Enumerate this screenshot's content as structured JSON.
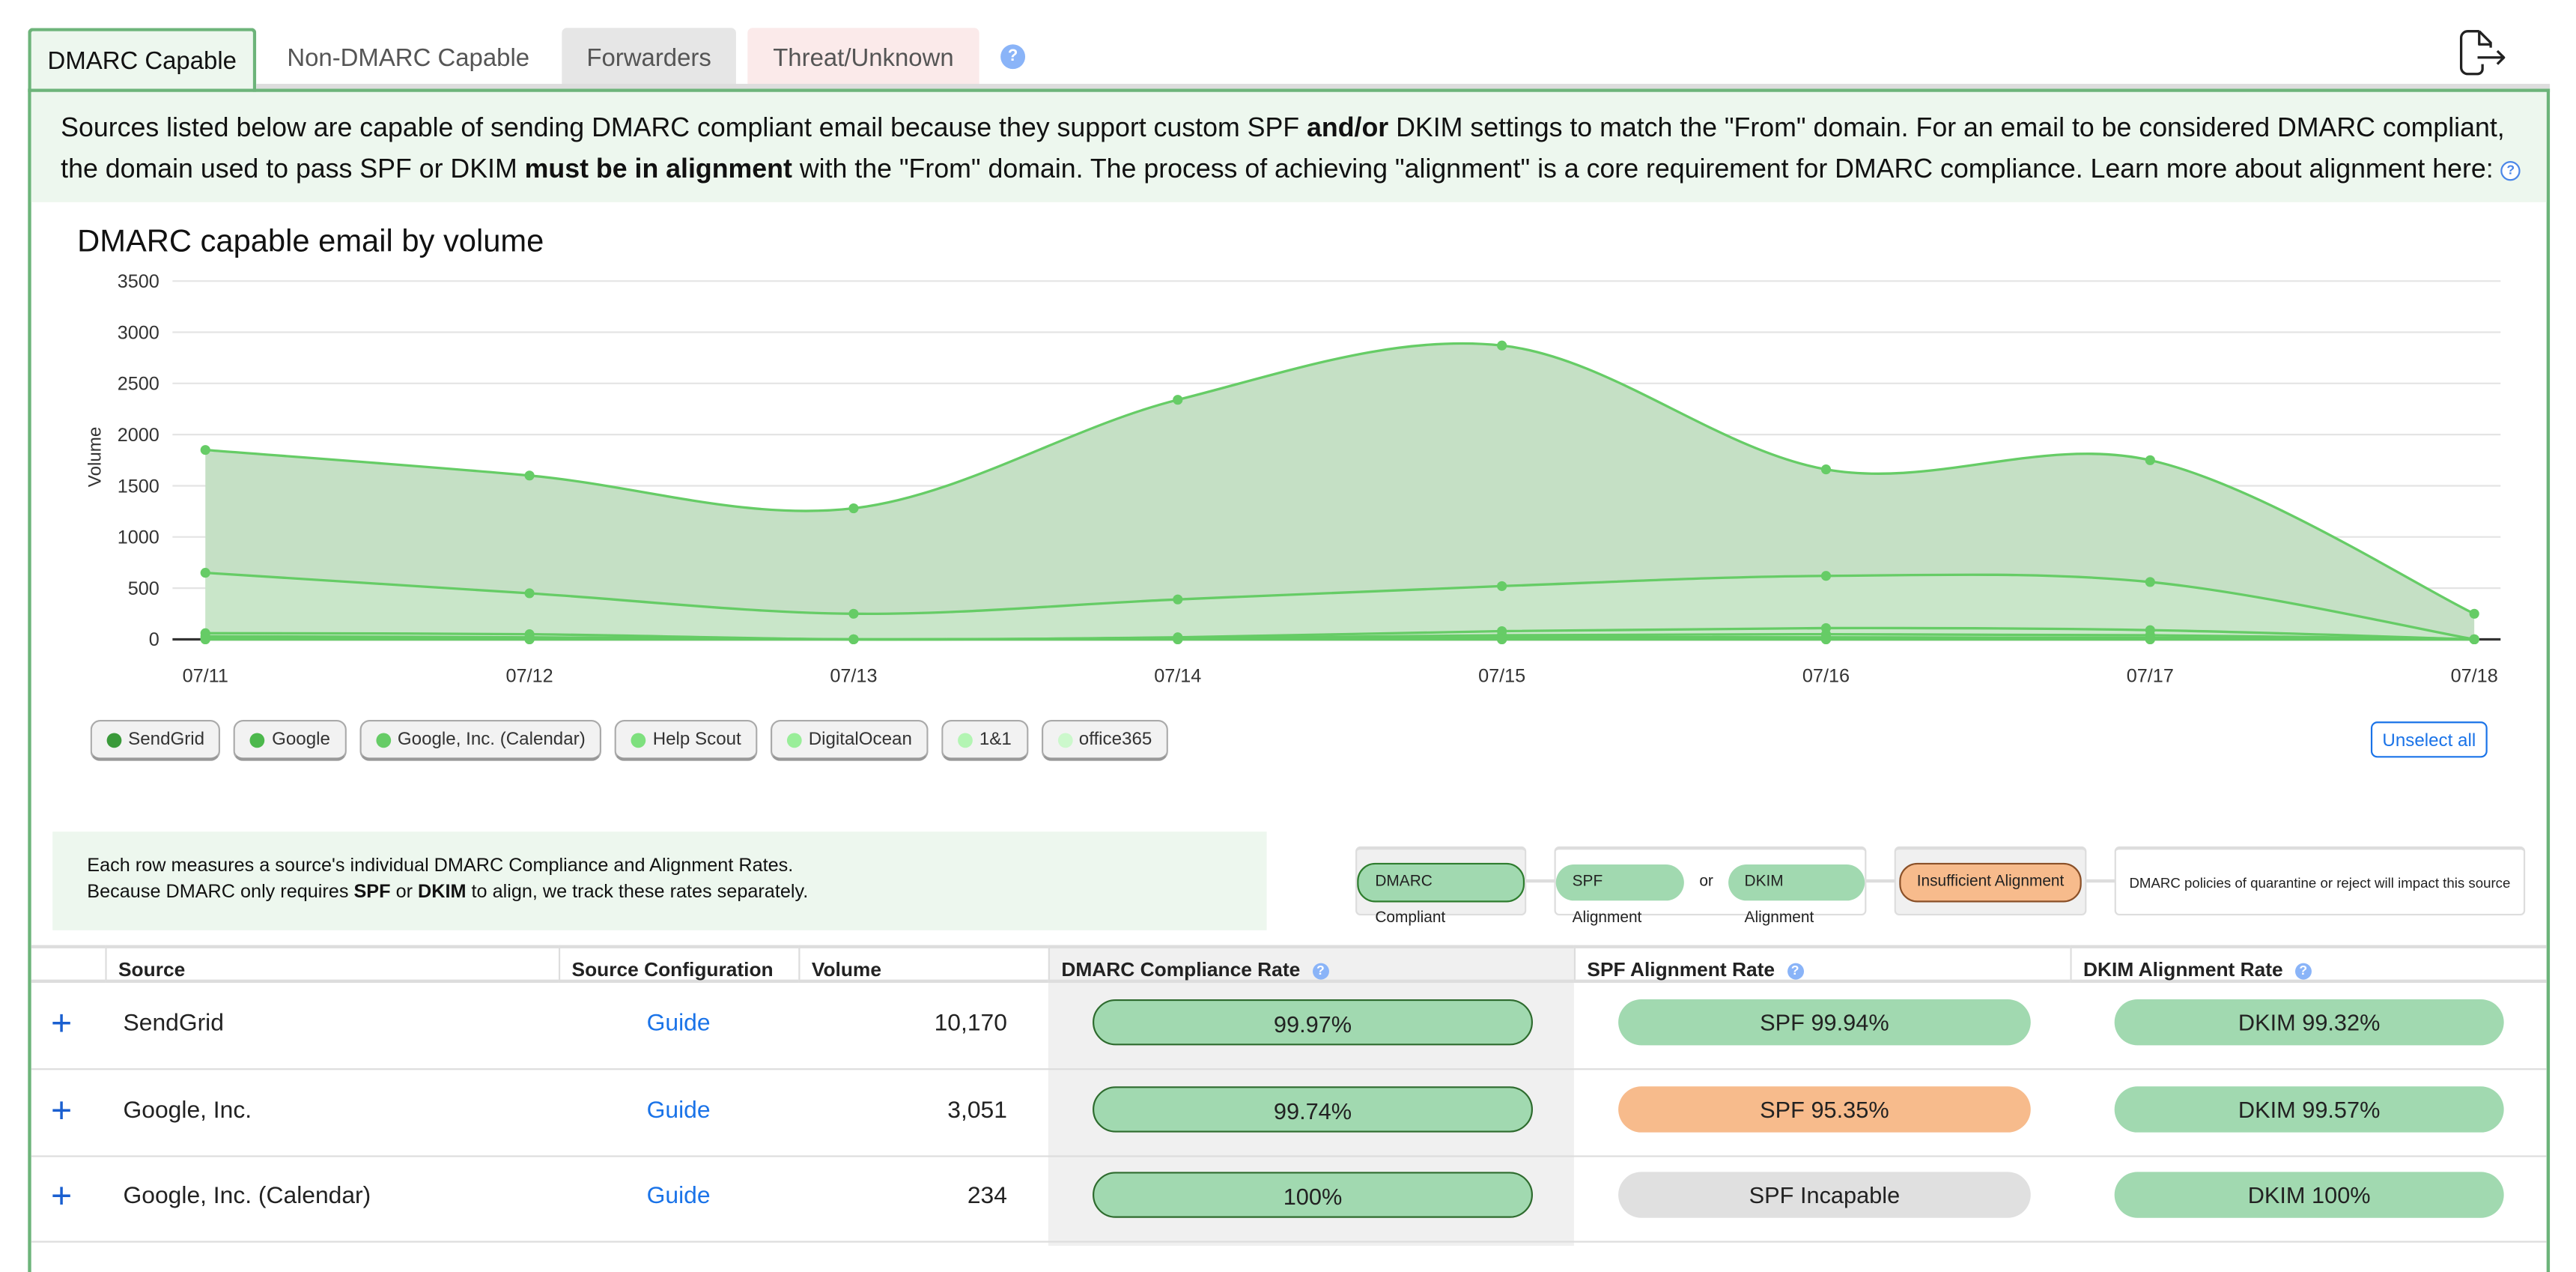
{
  "tabs": [
    {
      "label": "DMARC Capable",
      "active": true
    },
    {
      "label": "Non-DMARC Capable"
    },
    {
      "label": "Forwarders"
    },
    {
      "label": "Threat/Unknown"
    }
  ],
  "help_icon": "?",
  "export_icon": "file-export-icon",
  "banner": {
    "s1": "Sources listed below are capable of sending DMARC compliant email because they support custom SPF ",
    "b1": "and/or",
    "s2": " DKIM settings to match the \"From\" domain. For an email to be considered DMARC compliant, the domain used to pass SPF or DKIM ",
    "b2": "must be in alignment",
    "s3": " with the \"From\" domain. The process of achieving \"alignment\" is a core requirement for DMARC compliance. Learn more about alignment here:"
  },
  "chart_data": {
    "type": "area",
    "stacked": true,
    "title": "DMARC capable email by volume",
    "ylabel": "Volume",
    "xlabel": "",
    "ylim": [
      0,
      3500
    ],
    "yticks": [
      "3500",
      "3000",
      "2500",
      "2000",
      "1500",
      "1000",
      "500",
      "0"
    ],
    "categories": [
      "07/11",
      "07/12",
      "07/13",
      "07/14",
      "07/15",
      "07/16",
      "07/17",
      "07/18"
    ],
    "grid": true,
    "legend": "bottom-left",
    "series": [
      {
        "name": "SendGrid",
        "color": "#3a9a3a",
        "values": [
          1200,
          1150,
          1030,
          1950,
          2350,
          1040,
          1190,
          250
        ]
      },
      {
        "name": "Google",
        "color": "#4cb84c",
        "values": [
          590,
          400,
          250,
          370,
          440,
          510,
          470,
          0
        ]
      },
      {
        "name": "Google, Inc. (Calendar)",
        "color": "#66cc66",
        "values": [
          30,
          30,
          0,
          10,
          40,
          60,
          50,
          0
        ]
      },
      {
        "name": "Help Scout",
        "color": "#7ee07e",
        "values": [
          20,
          10,
          0,
          5,
          20,
          30,
          25,
          0
        ]
      },
      {
        "name": "DigitalOcean",
        "color": "#99ee99",
        "values": [
          10,
          10,
          0,
          5,
          20,
          20,
          15,
          0
        ]
      },
      {
        "name": "1&1",
        "color": "#b3f5b3",
        "values": [
          0,
          0,
          0,
          0,
          0,
          0,
          0,
          0
        ]
      },
      {
        "name": "office365",
        "color": "#ccf8cc",
        "values": [
          0,
          0,
          0,
          0,
          0,
          0,
          0,
          0
        ]
      }
    ]
  },
  "unselect_all": "Unselect all",
  "info": {
    "line1": "Each row measures a source's individual DMARC Compliance and Alignment Rates.",
    "l2a": "Because DMARC only requires ",
    "l2b": "SPF",
    "l2c": " or ",
    "l2d": "DKIM",
    "l2e": " to align, we track these rates separately."
  },
  "legend_key": {
    "compliant": "DMARC Compliant",
    "spf": "SPF Alignment",
    "or": "or",
    "dkim": "DKIM Alignment",
    "insufficient": "Insufficient Alignment",
    "impact": "DMARC policies of quarantine or reject will impact this source"
  },
  "table": {
    "headers": [
      "Source",
      "Source Configuration",
      "Volume",
      "DMARC Compliance Rate",
      "SPF Alignment Rate",
      "DKIM Alignment Rate"
    ],
    "rows": [
      {
        "source": "SendGrid",
        "config": "Guide",
        "volume": "10,170",
        "dmarc": "99.97%",
        "spf": "SPF 99.94%",
        "spf_status": "green",
        "dkim": "DKIM 99.32%"
      },
      {
        "source": "Google, Inc.",
        "config": "Guide",
        "volume": "3,051",
        "dmarc": "99.74%",
        "spf": "SPF 95.35%",
        "spf_status": "orange",
        "dkim": "DKIM 99.57%"
      },
      {
        "source": "Google, Inc. (Calendar)",
        "config": "Guide",
        "volume": "234",
        "dmarc": "100%",
        "spf": "SPF Incapable",
        "spf_status": "gray",
        "dkim": "DKIM 100%"
      }
    ]
  },
  "colors": {
    "green_pill": "#a1d9b0",
    "orange_pill": "#f7bb8c",
    "gray_pill": "#e0e0e0",
    "accent": "#6db47a",
    "link": "#1a73e8"
  }
}
